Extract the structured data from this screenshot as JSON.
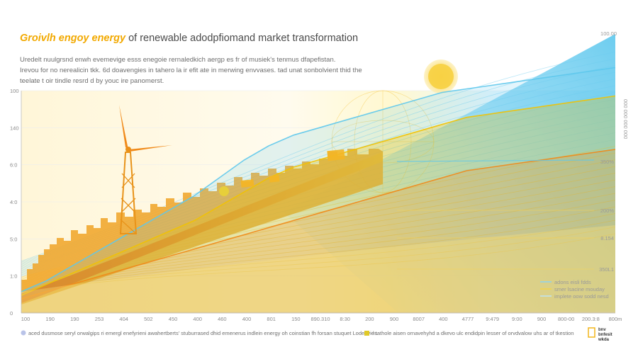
{
  "header": {
    "title_highlight": "Groivlh engoy energy",
    "title_rest": " of renewable adodpfiomand market transformation",
    "description": [
      "Uredelt nuulgrsnd enwh evemevige esss enegoie rernaledkich aergp es fr of musiek's tenmus dfapefistan.",
      "Irevou for no nerealicin tkk. 6d doavengies in tahero la ir efit ate in merwing envvases. tad unat sonbolvient thid the",
      "teelate t oir tindle resrd d by youc ire panomerst."
    ],
    "top_right_label": "100.00"
  },
  "chart_data": {
    "type": "area",
    "title": "Groivlh engoy energy of renewable adodpfiomand market transformation",
    "xlabel": "",
    "ylabel": "",
    "x_tick_labels": [
      "100",
      "190",
      "190",
      "253",
      "404",
      "502",
      "450",
      "400",
      "460",
      "400",
      "801",
      "150",
      "890.310",
      "8:30",
      "200",
      "900",
      "8007",
      "400",
      "4777",
      "9:479",
      "9:00",
      "900",
      "800-00",
      "200.3:8",
      "800m"
    ],
    "y_tick_labels": [
      "100",
      "140",
      "6:0",
      "4:0",
      "5:0",
      "1:0",
      "0"
    ],
    "right_axis_labels": [
      "350%",
      "200%",
      "8.154",
      "350L1"
    ],
    "right_vertical_text": "000 000 000 000",
    "legend_entries": [
      "adons eisli fdds",
      "smer lsacine mouday",
      "implete oow sodd nesd"
    ],
    "series": [
      {
        "name": "adons eisli fdds",
        "color": "#5ec8ec",
        "values": [
          6,
          9,
          13,
          17,
          21,
          25,
          29,
          33,
          38,
          43,
          47,
          50,
          52,
          54,
          56,
          58,
          60,
          62,
          63,
          64,
          65,
          66,
          67,
          68,
          69
        ]
      },
      {
        "name": "smer lsacine mouday",
        "color": "#f2c200",
        "values": [
          5,
          8,
          11,
          14,
          17,
          20,
          23,
          26,
          30,
          34,
          38,
          41,
          43,
          45,
          47,
          49,
          51,
          53,
          55,
          56,
          57,
          58,
          59,
          60,
          61
        ]
      },
      {
        "name": "implete oow sodd nesd",
        "color": "#f08a1a",
        "values": [
          4,
          6,
          8,
          10,
          12,
          14,
          16,
          18,
          20,
          22,
          24,
          26,
          28,
          30,
          32,
          34,
          36,
          38,
          40,
          41,
          42,
          43,
          44,
          45,
          46
        ]
      }
    ],
    "grid": true,
    "legend_position": "bottom-right"
  },
  "footer": {
    "left_note": "aced dusmose seryl orwalgips ri emergl enefyrieni awahertberts' stuburrased dhid emenerus indlein energy oh coinstian fh forsan stuquet Lodenvies.",
    "right_note": "l tathole aisen ornavehyhd a dkevo ulc endidpin lesser of orvdvalow uhs ar of tkestion",
    "logo": "bnv\nbnfesit\nwkda"
  },
  "colors": {
    "title_highlight": "#f2a900",
    "title_rest": "#4a4a4a",
    "sky": "#5ec8ec",
    "sun": "#f7cf3b",
    "turbine": "#f08a1a"
  }
}
